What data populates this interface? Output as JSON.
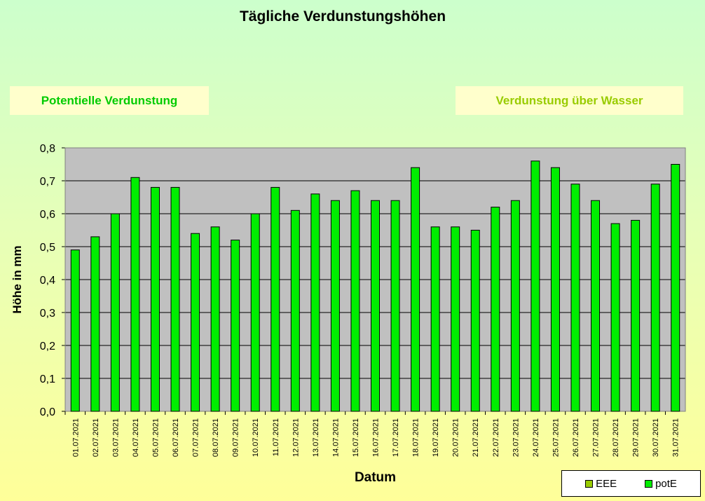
{
  "colors": {
    "bar": "#00ee00",
    "plot_bg": "#c0c0c0",
    "eee": "#99cc00",
    "pote": "#00ee00"
  },
  "labels": {
    "left_box": "Potentielle Verdunstung",
    "right_box": "Verdunstung über Wasser"
  },
  "chart_data": {
    "type": "bar",
    "title": "Tägliche Verdunstungshöhen",
    "xlabel": "Datum",
    "ylabel": "Höhe in mm",
    "ylim": [
      0,
      0.8
    ],
    "yticks": [
      "0,0",
      "0,1",
      "0,2",
      "0,3",
      "0,4",
      "0,5",
      "0,6",
      "0,7",
      "0,8"
    ],
    "grid": true,
    "legend_position": "bottom-right",
    "legend": [
      "EEE",
      "potE"
    ],
    "categories": [
      "01.07.2021",
      "02.07.2021",
      "03.07.2021",
      "04.07.2021",
      "05.07.2021",
      "06.07.2021",
      "07.07.2021",
      "08.07.2021",
      "09.07.2021",
      "10.07.2021",
      "11.07.2021",
      "12.07.2021",
      "13.07.2021",
      "14.07.2021",
      "15.07.2021",
      "16.07.2021",
      "17.07.2021",
      "18.07.2021",
      "19.07.2021",
      "20.07.2021",
      "21.07.2021",
      "22.07.2021",
      "23.07.2021",
      "24.07.2021",
      "25.07.2021",
      "26.07.2021",
      "27.07.2021",
      "28.07.2021",
      "29.07.2021",
      "30.07.2021",
      "31.07.2021"
    ],
    "series": [
      {
        "name": "potE",
        "values": [
          0.49,
          0.53,
          0.6,
          0.71,
          0.68,
          0.68,
          0.54,
          0.56,
          0.52,
          0.6,
          0.68,
          0.61,
          0.66,
          0.64,
          0.67,
          0.64,
          0.64,
          0.74,
          0.56,
          0.56,
          0.55,
          0.62,
          0.64,
          0.76,
          0.74,
          0.69,
          0.64,
          0.57,
          0.58,
          0.69,
          0.75
        ]
      }
    ]
  }
}
